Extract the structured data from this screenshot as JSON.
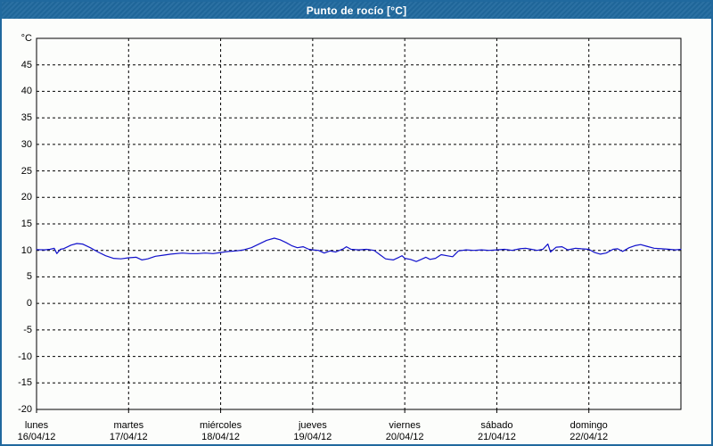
{
  "window": {
    "title": "Punto de rocío [°C]"
  },
  "colors": {
    "titlebar_bg": "#20699E",
    "titlebar_text": "#FFFFFF",
    "window_border": "#20699E",
    "background": "#FCFDFB",
    "plot_border": "#000000",
    "grid": "#000000",
    "series_line": "#1111CC",
    "label_text": "#000000"
  },
  "chart_data": {
    "type": "line",
    "title": "Punto de rocío [°C]",
    "legend": "none",
    "grid": "dashed",
    "y_axis": {
      "unit_label": "°C",
      "tick_values": [
        45,
        40,
        35,
        30,
        25,
        20,
        15,
        10,
        5,
        0,
        -5,
        -10,
        -15,
        -20
      ],
      "range": [
        -20,
        50
      ]
    },
    "x_axis": {
      "range_hours": [
        0,
        168
      ],
      "day_ticks": [
        {
          "name": "lunes",
          "date": "16/04/12"
        },
        {
          "name": "martes",
          "date": "17/04/12"
        },
        {
          "name": "miércoles",
          "date": "18/04/12"
        },
        {
          "name": "jueves",
          "date": "19/04/12"
        },
        {
          "name": "viernes",
          "date": "20/04/12"
        },
        {
          "name": "sábado",
          "date": "21/04/12"
        },
        {
          "name": "domingo",
          "date": "22/04/12"
        }
      ]
    },
    "series": [
      {
        "name": "Punto de rocío",
        "unit": "°C",
        "points": [
          [
            0,
            10.15
          ],
          [
            2,
            10.1
          ],
          [
            3.5,
            10.2
          ],
          [
            4.6,
            10.4
          ],
          [
            5.3,
            9.4
          ],
          [
            6.2,
            10.2
          ],
          [
            7,
            10.3
          ],
          [
            9,
            11.0
          ],
          [
            10.5,
            11.3
          ],
          [
            12,
            11.2
          ],
          [
            14,
            10.5
          ],
          [
            16,
            9.7
          ],
          [
            18,
            9.0
          ],
          [
            20,
            8.5
          ],
          [
            22,
            8.4
          ],
          [
            24,
            8.6
          ],
          [
            26,
            8.7
          ],
          [
            27.5,
            8.2
          ],
          [
            29,
            8.4
          ],
          [
            31,
            8.9
          ],
          [
            33,
            9.1
          ],
          [
            35,
            9.3
          ],
          [
            38,
            9.5
          ],
          [
            40,
            9.4
          ],
          [
            42,
            9.4
          ],
          [
            44,
            9.5
          ],
          [
            46,
            9.4
          ],
          [
            48,
            9.6
          ],
          [
            50,
            9.8
          ],
          [
            52,
            9.9
          ],
          [
            54,
            10.1
          ],
          [
            56,
            10.5
          ],
          [
            58,
            11.2
          ],
          [
            60,
            11.9
          ],
          [
            62,
            12.3
          ],
          [
            63.5,
            12.0
          ],
          [
            65,
            11.5
          ],
          [
            66.5,
            10.9
          ],
          [
            68,
            10.5
          ],
          [
            69.5,
            10.7
          ],
          [
            71,
            10.2
          ],
          [
            72,
            10.1
          ],
          [
            73.5,
            10.0
          ],
          [
            75,
            9.5
          ],
          [
            76.5,
            9.9
          ],
          [
            78,
            9.7
          ],
          [
            80,
            10.3
          ],
          [
            80.8,
            10.7
          ],
          [
            82,
            10.2
          ],
          [
            84,
            10.1
          ],
          [
            86,
            10.2
          ],
          [
            88,
            10.0
          ],
          [
            89.5,
            9.2
          ],
          [
            91,
            8.4
          ],
          [
            93,
            8.2
          ],
          [
            94.5,
            8.7
          ],
          [
            95.3,
            9.0
          ],
          [
            96,
            8.5
          ],
          [
            97.5,
            8.3
          ],
          [
            99,
            7.9
          ],
          [
            100.3,
            8.3
          ],
          [
            101.5,
            8.7
          ],
          [
            102.6,
            8.3
          ],
          [
            104,
            8.5
          ],
          [
            105.5,
            9.2
          ],
          [
            107,
            9.0
          ],
          [
            108.5,
            8.8
          ],
          [
            110,
            9.9
          ],
          [
            112,
            10.1
          ],
          [
            114,
            10.0
          ],
          [
            116,
            10.1
          ],
          [
            118,
            10.0
          ],
          [
            120,
            10.1
          ],
          [
            122,
            10.2
          ],
          [
            124,
            10.0
          ],
          [
            126,
            10.3
          ],
          [
            127.5,
            10.4
          ],
          [
            129,
            10.2
          ],
          [
            130.5,
            10.0
          ],
          [
            132,
            10.2
          ],
          [
            133.3,
            11.2
          ],
          [
            134,
            9.7
          ],
          [
            135.5,
            10.6
          ],
          [
            137,
            10.7
          ],
          [
            138.5,
            10.1
          ],
          [
            140.5,
            10.4
          ],
          [
            142,
            10.3
          ],
          [
            144,
            10.2
          ],
          [
            145.5,
            9.6
          ],
          [
            147,
            9.3
          ],
          [
            148.5,
            9.5
          ],
          [
            150.3,
            10.2
          ],
          [
            151.5,
            10.3
          ],
          [
            152.8,
            9.8
          ],
          [
            154.5,
            10.5
          ],
          [
            156,
            10.9
          ],
          [
            157.5,
            11.1
          ],
          [
            159,
            10.8
          ],
          [
            161,
            10.4
          ],
          [
            163,
            10.3
          ],
          [
            165,
            10.2
          ],
          [
            166.5,
            10.1
          ],
          [
            168,
            10.2
          ]
        ]
      }
    ]
  }
}
